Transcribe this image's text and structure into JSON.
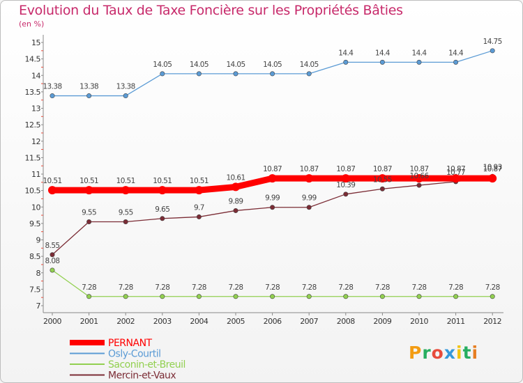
{
  "title": "Evolution du Taux de Taxe Foncière sur les Propriétés Bâties",
  "subtitle": "(en %)",
  "chart_data": {
    "type": "line",
    "x": [
      "2000",
      "2001",
      "2002",
      "2003",
      "2004",
      "2005",
      "2006",
      "2007",
      "2008",
      "2009",
      "2010",
      "2011",
      "2012"
    ],
    "ylim": [
      7,
      15
    ],
    "yticks": [
      "7",
      "7.5",
      "8",
      "8.5",
      "9",
      "9.5",
      "10",
      "10.5",
      "11",
      "11.5",
      "12",
      "12.5",
      "13",
      "13.5",
      "14",
      "14.5",
      "15"
    ],
    "grid": false,
    "legend_position": "bottom-left",
    "series": [
      {
        "name": "PERNANT",
        "color": "#ff0000",
        "values": [
          10.51,
          10.51,
          10.51,
          10.51,
          10.51,
          10.61,
          10.87,
          10.87,
          10.87,
          10.87,
          10.87,
          10.87,
          10.87
        ],
        "labels": [
          "10.51",
          "10.51",
          "10.51",
          "10.51",
          "10.51",
          "10.61",
          "10.87",
          "10.87",
          "10.87",
          "10.87",
          "10.87",
          "10.87",
          "10.87"
        ]
      },
      {
        "name": "Osly-Courtil",
        "color": "#5b9bd5",
        "values": [
          13.38,
          13.38,
          13.38,
          14.05,
          14.05,
          14.05,
          14.05,
          14.05,
          14.4,
          14.4,
          14.4,
          14.4,
          14.75
        ],
        "labels": [
          "13.38",
          "13.38",
          "13.38",
          "14.05",
          "14.05",
          "14.05",
          "14.05",
          "14.05",
          "14.4",
          "14.4",
          "14.4",
          "14.4",
          "14.75"
        ]
      },
      {
        "name": "Saconin-et-Breuil",
        "color": "#92d050",
        "values": [
          8.08,
          7.28,
          7.28,
          7.28,
          7.28,
          7.28,
          7.28,
          7.28,
          7.28,
          7.28,
          7.28,
          7.28,
          7.28
        ],
        "labels": [
          "8.08",
          "7.28",
          "7.28",
          "7.28",
          "7.28",
          "7.28",
          "7.28",
          "7.28",
          "7.28",
          "7.28",
          "7.28",
          "7.28",
          "7.28"
        ]
      },
      {
        "name": "Mercin-et-Vaux",
        "color": "#7b2c35",
        "values": [
          8.55,
          9.55,
          9.55,
          9.65,
          9.7,
          9.89,
          9.99,
          9.99,
          10.39,
          10.55,
          10.66,
          10.77,
          10.93
        ],
        "labels": [
          "8.55",
          "9.55",
          "9.55",
          "9.65",
          "9.7",
          "9.89",
          "9.99",
          "9.99",
          "10.39",
          "10.55",
          "10.66",
          "10.77",
          "10.93"
        ]
      }
    ]
  },
  "logo": {
    "letters": [
      "P",
      "r",
      "o",
      "x",
      "i",
      "t",
      "i"
    ],
    "colors": [
      "#f39c12",
      "#27ae60",
      "#e74c3c",
      "#3498db",
      "#f1c40f",
      "#27ae60",
      "#e67e22"
    ]
  }
}
